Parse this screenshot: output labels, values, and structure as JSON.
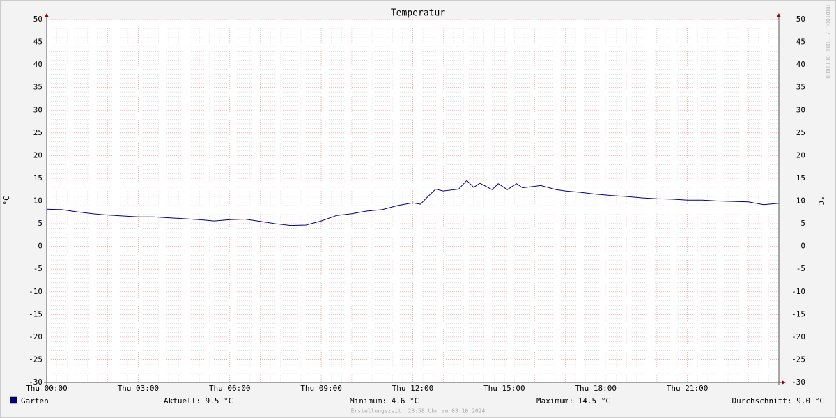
{
  "chart_data": {
    "type": "line",
    "title": "Temperatur",
    "y_label": "°C",
    "watermark": "RRDTOOL / TOBI OETIKER",
    "x": [
      0,
      0.5,
      1,
      1.5,
      2,
      2.5,
      3,
      3.5,
      4,
      4.5,
      5,
      5.5,
      6,
      6.5,
      7,
      7.5,
      8,
      8.5,
      9,
      9.5,
      10,
      10.5,
      11,
      11.5,
      12,
      12.25,
      12.5,
      12.75,
      13,
      13.5,
      13.77,
      14,
      14.2,
      14.6,
      14.8,
      15.1,
      15.4,
      15.6,
      16.2,
      16.7,
      17,
      17.5,
      18,
      18.5,
      19,
      19.5,
      20,
      20.5,
      21,
      21.5,
      22,
      22.5,
      23,
      23.5,
      24
    ],
    "series": [
      {
        "name": "Garten",
        "color": "#000080",
        "values": [
          8.2,
          8.1,
          7.6,
          7.2,
          6.9,
          6.7,
          6.5,
          6.5,
          6.3,
          6.1,
          5.9,
          5.6,
          5.9,
          6.0,
          5.5,
          5.0,
          4.6,
          4.7,
          5.6,
          6.8,
          7.2,
          7.8,
          8.1,
          9.0,
          9.6,
          9.3,
          11.0,
          12.6,
          12.2,
          12.6,
          14.5,
          13.0,
          13.9,
          12.5,
          13.8,
          12.5,
          13.8,
          12.9,
          13.4,
          12.5,
          12.2,
          11.9,
          11.5,
          11.2,
          11.0,
          10.7,
          10.5,
          10.4,
          10.2,
          10.2,
          10.0,
          9.9,
          9.8,
          9.2,
          9.5
        ]
      }
    ],
    "xlim": [
      0,
      24
    ],
    "xticks": [
      {
        "value": 0,
        "label": "Thu 00:00"
      },
      {
        "value": 3,
        "label": "Thu 03:00"
      },
      {
        "value": 6,
        "label": "Thu 06:00"
      },
      {
        "value": 9,
        "label": "Thu 09:00"
      },
      {
        "value": 12,
        "label": "Thu 12:00"
      },
      {
        "value": 15,
        "label": "Thu 15:00"
      },
      {
        "value": 18,
        "label": "Thu 18:00"
      },
      {
        "value": 21,
        "label": "Thu 21:00"
      }
    ],
    "ylim": [
      -30,
      50
    ],
    "yticks": [
      -30,
      -25,
      -20,
      -15,
      -10,
      -5,
      0,
      5,
      10,
      15,
      20,
      25,
      30,
      35,
      40,
      45,
      50
    ],
    "grid": true,
    "legend": {
      "aktuell": "Aktuell: 9.5 °C",
      "minimum": "Minimum: 4.6 °C",
      "maximum": "Maximum: 14.5 °C",
      "durchschnitt": "Durchschnitt: 9.0 °C"
    },
    "footer": "Erstellungszeit: 23:58 Uhr am 03.10.2024"
  }
}
